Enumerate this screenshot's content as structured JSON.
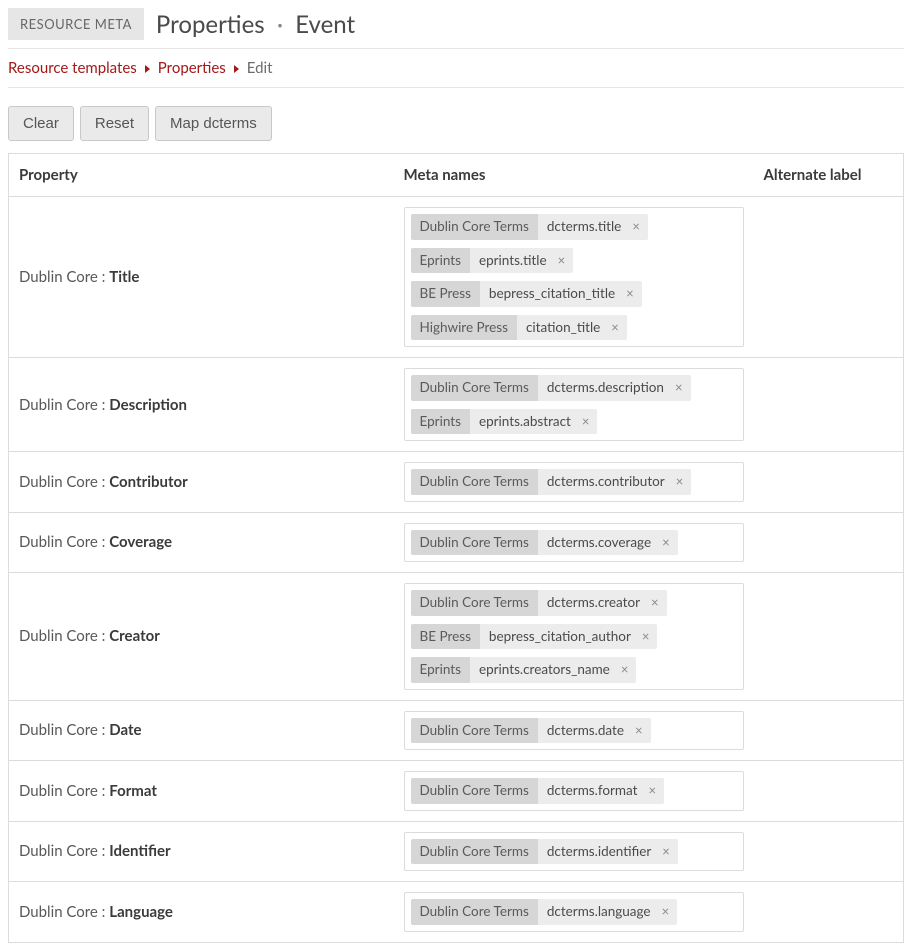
{
  "header": {
    "badge": "RESOURCE META",
    "title_a": "Properties",
    "title_sep": "·",
    "title_b": "Event"
  },
  "breadcrumb": {
    "items": [
      {
        "label": "Resource templates",
        "link": true
      },
      {
        "label": "Properties",
        "link": true
      },
      {
        "label": "Edit",
        "link": false
      }
    ]
  },
  "toolbar": {
    "clear": "Clear",
    "reset": "Reset",
    "map": "Map dcterms"
  },
  "columns": {
    "property": "Property",
    "meta": "Meta names",
    "alt": "Alternate label"
  },
  "rows": [
    {
      "vocab": "Dublin Core",
      "term": "Title",
      "tags": [
        {
          "src": "Dublin Core Terms",
          "val": "dcterms.title"
        },
        {
          "src": "Eprints",
          "val": "eprints.title"
        },
        {
          "src": "BE Press",
          "val": "bepress_citation_title"
        },
        {
          "src": "Highwire Press",
          "val": "citation_title"
        }
      ]
    },
    {
      "vocab": "Dublin Core",
      "term": "Description",
      "tags": [
        {
          "src": "Dublin Core Terms",
          "val": "dcterms.description"
        },
        {
          "src": "Eprints",
          "val": "eprints.abstract"
        }
      ]
    },
    {
      "vocab": "Dublin Core",
      "term": "Contributor",
      "tags": [
        {
          "src": "Dublin Core Terms",
          "val": "dcterms.contributor"
        }
      ]
    },
    {
      "vocab": "Dublin Core",
      "term": "Coverage",
      "tags": [
        {
          "src": "Dublin Core Terms",
          "val": "dcterms.coverage"
        }
      ]
    },
    {
      "vocab": "Dublin Core",
      "term": "Creator",
      "tags": [
        {
          "src": "Dublin Core Terms",
          "val": "dcterms.creator"
        },
        {
          "src": "BE Press",
          "val": "bepress_citation_author"
        },
        {
          "src": "Eprints",
          "val": "eprints.creators_name"
        }
      ]
    },
    {
      "vocab": "Dublin Core",
      "term": "Date",
      "tags": [
        {
          "src": "Dublin Core Terms",
          "val": "dcterms.date"
        }
      ]
    },
    {
      "vocab": "Dublin Core",
      "term": "Format",
      "tags": [
        {
          "src": "Dublin Core Terms",
          "val": "dcterms.format"
        }
      ]
    },
    {
      "vocab": "Dublin Core",
      "term": "Identifier",
      "tags": [
        {
          "src": "Dublin Core Terms",
          "val": "dcterms.identifier"
        }
      ]
    },
    {
      "vocab": "Dublin Core",
      "term": "Language",
      "tags": [
        {
          "src": "Dublin Core Terms",
          "val": "dcterms.language"
        }
      ]
    }
  ]
}
